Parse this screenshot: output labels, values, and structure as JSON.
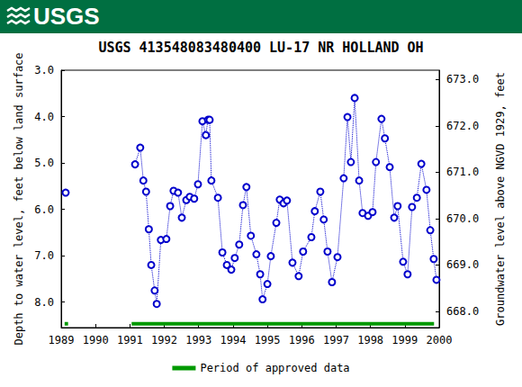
{
  "header": {
    "logo_text": "USGS"
  },
  "chart_data": {
    "type": "line",
    "title": "USGS 413548083480400 LU-17 NR HOLLAND OH",
    "xlim": [
      1989,
      2000
    ],
    "xticks": [
      1989,
      1990,
      1991,
      1992,
      1993,
      1994,
      1995,
      1996,
      1997,
      1998,
      1999,
      2000
    ],
    "ylabel": "Depth to water level, feet below land surface",
    "ylim": [
      3.0,
      8.55
    ],
    "yticks": [
      {
        "value": 3,
        "label": "3.0"
      },
      {
        "value": 4,
        "label": "4.0"
      },
      {
        "value": 5,
        "label": "5.0"
      },
      {
        "value": 6,
        "label": "6.0"
      },
      {
        "value": 7,
        "label": "7.0"
      },
      {
        "value": 8,
        "label": "8.0"
      }
    ],
    "y2label": "Groundwater level above NGVD 1929, feet",
    "y2lim": [
      667.65,
      673.2
    ],
    "y2ticks": [
      {
        "value": 668,
        "label": "668.0"
      },
      {
        "value": 669,
        "label": "669.0"
      },
      {
        "value": 670,
        "label": "670.0"
      },
      {
        "value": 671,
        "label": "671.0"
      },
      {
        "value": 672,
        "label": "672.0"
      },
      {
        "value": 673,
        "label": "673.0"
      }
    ],
    "x": [
      1989.13,
      null,
      1991.15,
      1991.3,
      1991.39,
      1991.47,
      1991.55,
      1991.62,
      1991.72,
      1991.78,
      1991.9,
      1992.06,
      1992.17,
      1992.27,
      1992.4,
      1992.51,
      1992.64,
      1992.74,
      1992.87,
      1992.98,
      1993.11,
      1993.21,
      1993.27,
      1993.32,
      1993.37,
      1993.56,
      1993.69,
      1993.82,
      1993.95,
      1994.05,
      1994.18,
      1994.29,
      1994.39,
      1994.52,
      1994.68,
      1994.79,
      1994.86,
      1995.0,
      1995.1,
      1995.26,
      1995.36,
      1995.47,
      1995.57,
      1995.73,
      1995.91,
      1996.04,
      1996.28,
      1996.38,
      1996.54,
      1996.64,
      1996.75,
      1996.88,
      1997.04,
      1997.22,
      1997.33,
      1997.43,
      1997.54,
      1997.67,
      1997.77,
      1997.93,
      1998.06,
      1998.16,
      1998.32,
      1998.42,
      1998.56,
      1998.69,
      1998.79,
      1998.95,
      1999.08,
      1999.21,
      1999.35,
      1999.48,
      1999.63,
      1999.74,
      1999.84,
      1999.92
    ],
    "values": [
      5.64,
      null,
      5.03,
      4.67,
      5.38,
      5.62,
      6.43,
      7.2,
      7.75,
      8.04,
      6.66,
      6.64,
      5.93,
      5.6,
      5.64,
      6.18,
      5.8,
      5.73,
      5.77,
      5.46,
      4.1,
      4.4,
      4.07,
      4.07,
      5.38,
      5.75,
      6.93,
      7.2,
      7.3,
      7.05,
      6.76,
      5.91,
      5.52,
      6.57,
      6.97,
      7.4,
      7.94,
      7.61,
      7.01,
      6.29,
      5.79,
      5.87,
      5.81,
      7.15,
      7.44,
      6.91,
      6.6,
      6.04,
      5.62,
      6.22,
      6.91,
      7.57,
      7.03,
      5.33,
      4.01,
      4.98,
      3.6,
      5.38,
      6.08,
      6.14,
      6.06,
      4.98,
      4.05,
      4.47,
      5.09,
      6.18,
      5.93,
      7.13,
      7.4,
      5.95,
      5.75,
      5.02,
      5.58,
      6.45,
      7.07,
      7.52
    ],
    "color": "#0000cc",
    "marker": "circle",
    "line_style": "dotted",
    "approved_periods": {
      "name": "Period of approved data",
      "color": "#009900",
      "ranges": [
        [
          1989.1,
          1989.2
        ],
        [
          1991.05,
          1999.85
        ]
      ]
    },
    "legend": "bottom",
    "grid": false
  }
}
